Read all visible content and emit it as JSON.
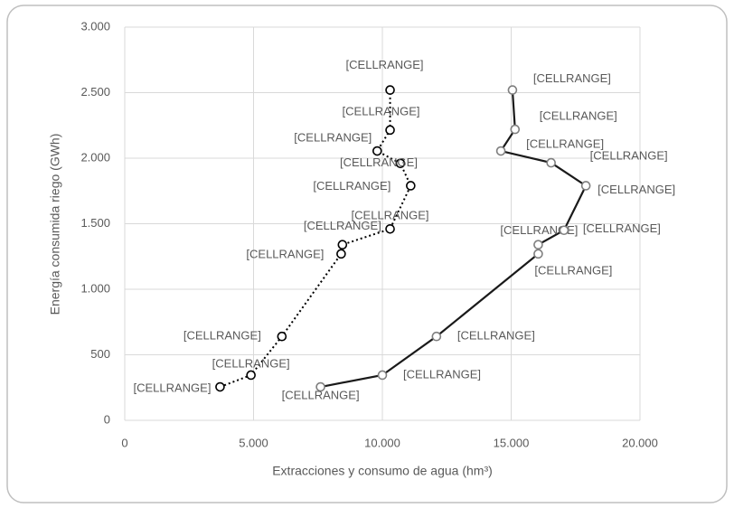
{
  "chart_data": {
    "type": "scatter",
    "x_label": "Extracciones y consumo de agua (hm³)",
    "y_label": "Energía consumida riego (GWh)",
    "xlim": [
      0,
      20000
    ],
    "xticks": [
      0,
      {
        "value": 5000,
        "label": "5.000"
      },
      {
        "value": 10000,
        "label": "10.000"
      },
      {
        "value": 15000,
        "label": "15.000"
      },
      {
        "value": 20000,
        "label": "20.000"
      }
    ],
    "ylim": [
      0,
      3000
    ],
    "yticks": [
      0,
      500,
      {
        "value": 1000,
        "label": "1.000"
      },
      {
        "value": 1500,
        "label": "1.500"
      },
      {
        "value": 2000,
        "label": "2.000"
      },
      {
        "value": 2500,
        "label": "2.500"
      },
      {
        "value": 3000,
        "label": "3.000"
      }
    ],
    "grid": true,
    "series": [
      {
        "color": "#000000",
        "marker_color": "#000000",
        "line_style": "dotted",
        "x": [
          3700,
          4900,
          6100,
          8400,
          8450,
          10300,
          11100,
          10700,
          9800,
          10300,
          10300
        ],
        "values": [
          255,
          345,
          640,
          1270,
          1340,
          1460,
          1790,
          1960,
          2055,
          2215,
          2520
        ],
        "value_labels": [
          "[CELLRANGE]",
          "[CELLRANGE]",
          "[CELLRANGE]",
          "[CELLRANGE]",
          "[CELLRANGE]",
          "[CELLRANGE]",
          "[CELLRANGE]",
          "[CELLRANGE]",
          "[CELLRANGE]",
          "[CELLRANGE]",
          "[CELLRANGE]"
        ]
      },
      {
        "color": "#1a1a1a",
        "marker_color": "#7f7f7f",
        "line_style": "solid",
        "x": [
          7600,
          10000,
          12100,
          16050,
          16050,
          17050,
          17900,
          16550,
          14600,
          15150,
          15050
        ],
        "values": [
          255,
          345,
          640,
          1270,
          1340,
          1450,
          1790,
          1965,
          2055,
          2220,
          2520
        ],
        "value_labels": [
          "[CELLRANGE]",
          "[CELLRANGE]",
          "[CELLRANGE]",
          "[CELLRANGE]",
          "[CELLRANGE]",
          "[CELLRANGE]",
          "[CELLRANGE]",
          "[CELLRANGE]",
          "[CELLRANGE]",
          "[CELLRANGE]",
          "[CELLRANGE]"
        ]
      }
    ]
  }
}
